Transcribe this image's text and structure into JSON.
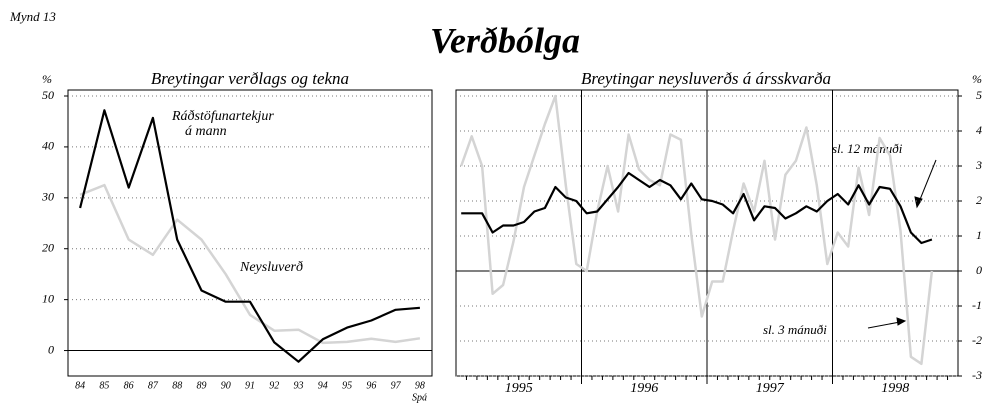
{
  "figure_label": "Mynd 13",
  "title": "Verðbólga",
  "chart_data": [
    {
      "type": "line",
      "title": "Breytingar verðlags og tekna",
      "y_unit": "%",
      "y_axis_side": "left",
      "categories": [
        "84",
        "85",
        "86",
        "87",
        "88",
        "89",
        "90",
        "91",
        "92",
        "93",
        "94",
        "95",
        "96",
        "97",
        "98"
      ],
      "x_note": "Spá",
      "ylim": [
        -5,
        50
      ],
      "yticks": [
        0,
        10,
        20,
        30,
        40,
        50
      ],
      "grid": true,
      "series": [
        {
          "name": "Ráðstöfunartekjur á mann",
          "color": "#000000",
          "values": [
            28,
            47.2,
            32,
            45.7,
            21.8,
            11.8,
            9.6,
            9.6,
            1.6,
            -2.2,
            2.2,
            4.5,
            5.9,
            8,
            8.4
          ]
        },
        {
          "name": "Neysluverð",
          "color": "#d4d4d4",
          "values": [
            30.6,
            32.5,
            21.8,
            18.8,
            25.7,
            21.8,
            15,
            7,
            3.9,
            4.1,
            1.5,
            1.7,
            2.3,
            1.7,
            2.4
          ]
        }
      ]
    },
    {
      "type": "line",
      "title": "Breytingar neysluverðs á ársskvarða",
      "y_unit": "%",
      "y_axis_side": "right",
      "year_labels": [
        "1995",
        "1996",
        "1997",
        "1998"
      ],
      "ylim": [
        -3,
        5
      ],
      "yticks": [
        -3,
        -2,
        -1,
        0,
        1,
        2,
        3,
        4,
        5
      ],
      "grid": true,
      "series": [
        {
          "name": "sl. 12 mánuði",
          "color": "#000000",
          "values": [
            1.65,
            1.65,
            1.65,
            1.1,
            1.3,
            1.3,
            1.4,
            1.7,
            1.8,
            2.4,
            2.1,
            2.0,
            1.65,
            1.7,
            2.05,
            2.4,
            2.8,
            2.6,
            2.4,
            2.6,
            2.45,
            2.05,
            2.5,
            2.05,
            2.0,
            1.9,
            1.65,
            2.2,
            1.45,
            1.85,
            1.8,
            1.5,
            1.65,
            1.85,
            1.7,
            2.0,
            2.2,
            1.9,
            2.45,
            1.9,
            2.4,
            2.35,
            1.85,
            1.1,
            0.8,
            0.9
          ]
        },
        {
          "name": "sl. 3 mánuði",
          "color": "#d4d4d4",
          "values": [
            3.0,
            3.85,
            3.0,
            -0.65,
            -0.4,
            0.85,
            2.4,
            3.3,
            4.2,
            5.0,
            2.45,
            0.2,
            0.0,
            1.7,
            3.0,
            1.7,
            3.9,
            2.9,
            2.6,
            2.45,
            3.9,
            3.75,
            1.05,
            -1.3,
            -0.3,
            -0.3,
            1.15,
            2.5,
            1.7,
            3.15,
            0.9,
            2.75,
            3.15,
            4.1,
            2.45,
            0.2,
            1.1,
            0.7,
            2.95,
            1.6,
            3.8,
            3.3,
            1.15,
            -2.45,
            -2.65,
            0.0
          ]
        }
      ]
    }
  ]
}
